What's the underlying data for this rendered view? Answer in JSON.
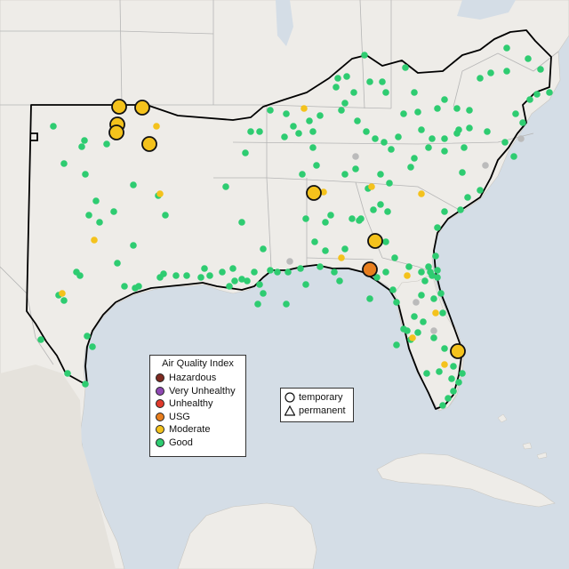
{
  "map": {
    "colors": {
      "water": "#d4dde6",
      "land": "#eeece8",
      "land_shade": "#e5e2dc",
      "border_region": "#000000",
      "state_lines": "#b5b5b5"
    }
  },
  "legend": {
    "title": "Air Quality Index",
    "categories": [
      {
        "label": "Hazardous",
        "color": "#7e2a20"
      },
      {
        "label": "Very Unhealthy",
        "color": "#8f49b3"
      },
      {
        "label": "Unhealthy",
        "color": "#e03a2c"
      },
      {
        "label": "USG",
        "color": "#e87e1e"
      },
      {
        "label": "Moderate",
        "color": "#f4c21c"
      },
      {
        "label": "Good",
        "color": "#2ecc71"
      }
    ]
  },
  "shape_legend": {
    "temporary": "temporary",
    "permanent": "permanent"
  },
  "monitors": {
    "colors": {
      "good": "#2ecc71",
      "moderate": "#f4c21c",
      "usg": "#e87e1e",
      "nodata": "#bbbbbb"
    }
  }
}
